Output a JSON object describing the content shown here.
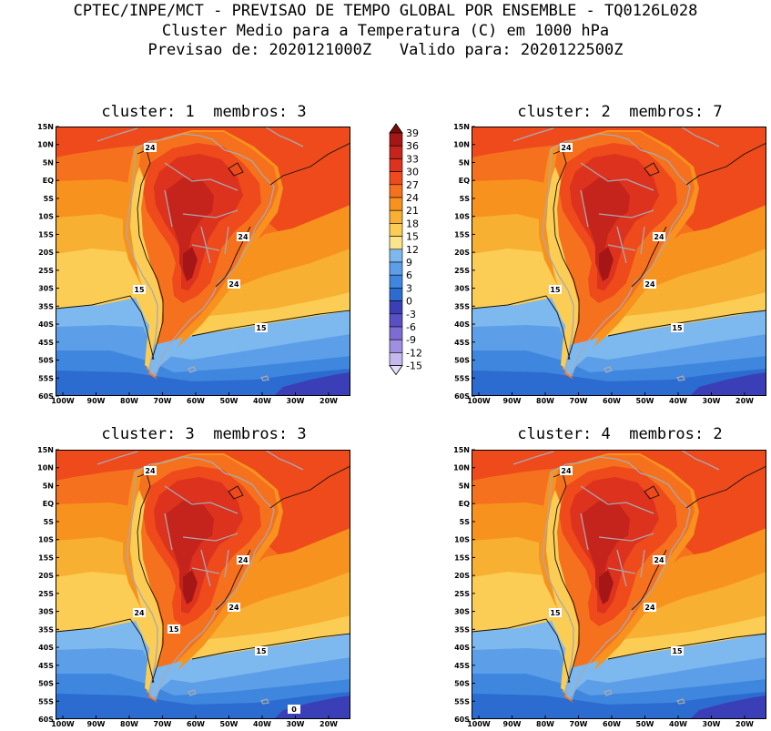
{
  "header": {
    "line1": "CPTEC/INPE/MCT - PREVISAO DE TEMPO GLOBAL POR ENSEMBLE - TQ0126L028",
    "line2": "Cluster Medio para a Temperatura (C) em 1000 hPa",
    "line3": "Previsao de: 2020121000Z   Valido para: 2020122500Z"
  },
  "panels": [
    {
      "title": "cluster: 1  membros: 3",
      "contour_labels": [
        "24",
        "24",
        "24",
        "15",
        "15"
      ]
    },
    {
      "title": "cluster: 2  membros: 7",
      "contour_labels": [
        "24",
        "24",
        "24",
        "15",
        "15"
      ]
    },
    {
      "title": "cluster: 3  membros: 3",
      "contour_labels": [
        "24",
        "24",
        "24",
        "24",
        "15",
        "15",
        "0"
      ]
    },
    {
      "title": "cluster: 4  membros: 2",
      "contour_labels": [
        "24",
        "24",
        "24",
        "15",
        "15"
      ]
    }
  ],
  "axes": {
    "lat_ticks": [
      "15N",
      "10N",
      "5N",
      "EQ",
      "5S",
      "10S",
      "15S",
      "20S",
      "25S",
      "30S",
      "35S",
      "40S",
      "45S",
      "50S",
      "55S",
      "60S"
    ],
    "lon_ticks": [
      "100W",
      "90W",
      "80W",
      "70W",
      "60W",
      "50W",
      "40W",
      "30W",
      "20W"
    ]
  },
  "colorbar": {
    "labels": [
      "39",
      "36",
      "33",
      "30",
      "27",
      "24",
      "21",
      "18",
      "15",
      "12",
      "9",
      "6",
      "3",
      "0",
      "-3",
      "-6",
      "-9",
      "-12",
      "-15"
    ],
    "colors": [
      "#7a0a0a",
      "#a51616",
      "#c4241b",
      "#dc321e",
      "#ee4a1c",
      "#f6711e",
      "#f8921e",
      "#f8b033",
      "#fbcd55",
      "#fbe48c",
      "#7db8ee",
      "#5c9fe8",
      "#3f86de",
      "#2c6bcf",
      "#3a3fb8",
      "#5a4fc4",
      "#7d6dd2",
      "#a08ee0",
      "#c6b8ee",
      "#e6dcf8"
    ]
  }
}
